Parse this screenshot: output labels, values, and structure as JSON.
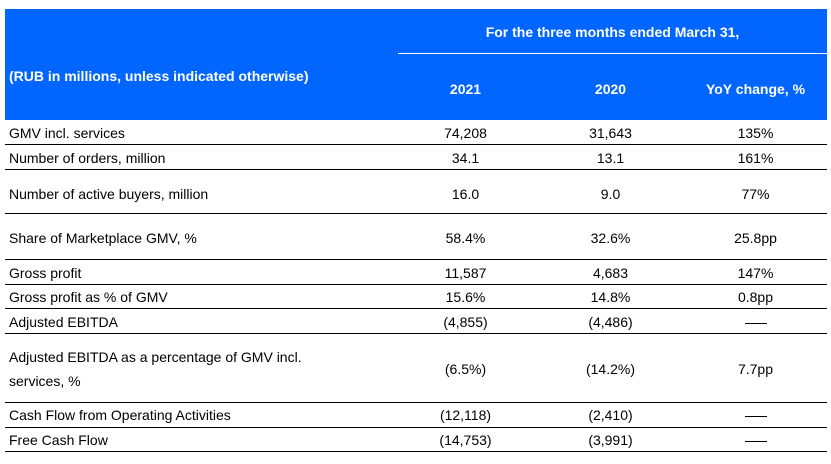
{
  "header": {
    "units_label": "(RUB in millions, unless indicated otherwise)",
    "period_label": "For the three months ended March 31,",
    "columns": [
      "2021",
      "2020",
      "YoY change, %"
    ]
  },
  "rows": [
    {
      "label": "GMV incl. services",
      "v2021": "74,208",
      "v2020": "31,643",
      "yoy": "135%"
    },
    {
      "label": "Number of orders, million",
      "v2021": "34.1",
      "v2020": "13.1",
      "yoy": "161%"
    },
    {
      "label": "Number of active buyers, million",
      "v2021": "16.0",
      "v2020": "9.0",
      "yoy": "77%"
    },
    {
      "label": "Share of Marketplace GMV, %",
      "v2021": "58.4%",
      "v2020": "32.6%",
      "yoy": "25.8pp"
    },
    {
      "label": "Gross profit",
      "v2021": "11,587",
      "v2020": "4,683",
      "yoy": "147%"
    },
    {
      "label": "Gross profit as % of GMV",
      "v2021": "15.6%",
      "v2020": "14.8%",
      "yoy": "0.8pp"
    },
    {
      "label": "Adjusted EBITDA",
      "v2021": "(4,855)",
      "v2020": "(4,486)",
      "yoy": "—"
    },
    {
      "label_line1": "Adjusted EBITDA as a percentage of GMV incl.",
      "label_line2": "services, %",
      "v2021": "(6.5%)",
      "v2020": "(14.2%)",
      "yoy": "7.7pp"
    },
    {
      "label": "Cash Flow from Operating Activities",
      "v2021": "(12,118)",
      "v2020": "(2,410)",
      "yoy": "—"
    },
    {
      "label": "Free Cash Flow",
      "v2021": "(14,753)",
      "v2020": "(3,991)",
      "yoy": "—"
    }
  ]
}
